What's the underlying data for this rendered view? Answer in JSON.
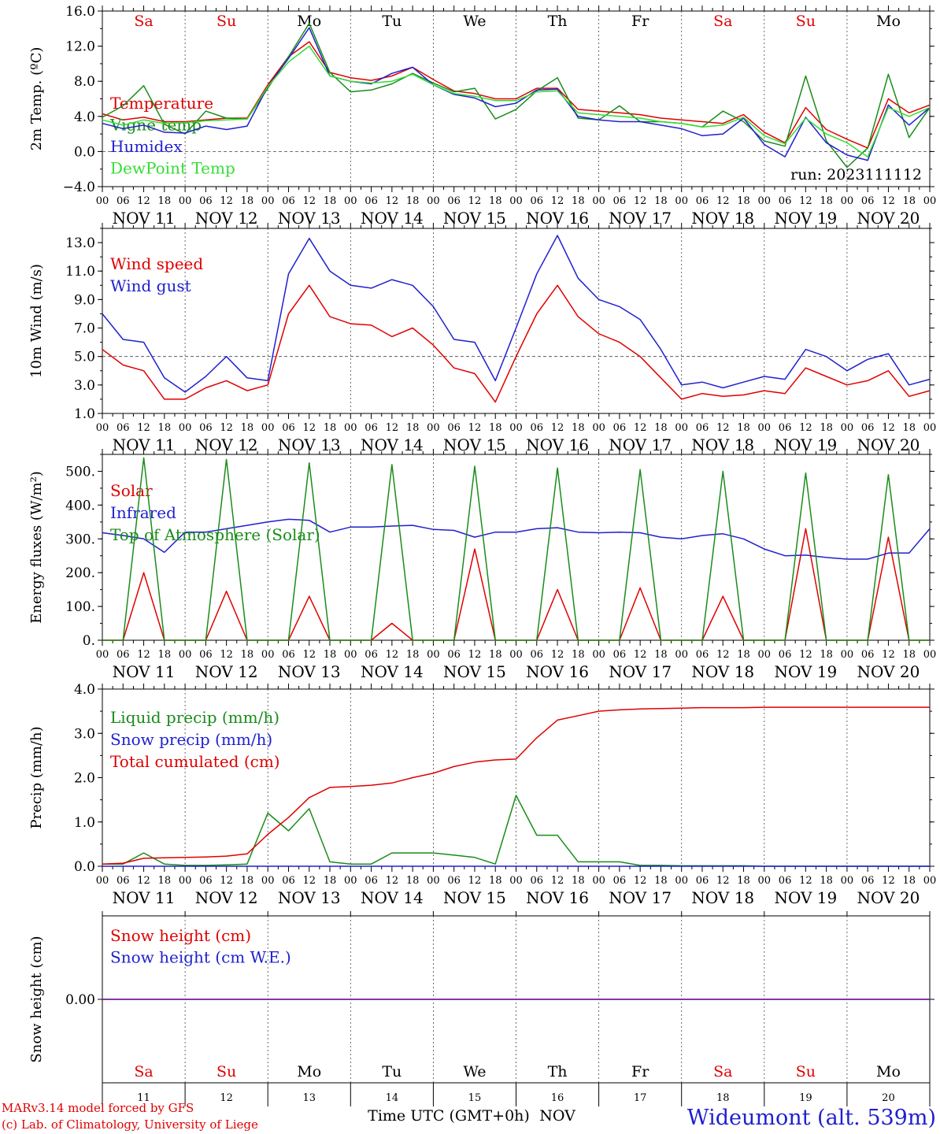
{
  "days": [
    "NOV 11",
    "NOV 12",
    "NOV 13",
    "NOV 14",
    "NOV 15",
    "NOV 16",
    "NOV 17",
    "NOV 18",
    "NOV 19",
    "NOV 20"
  ],
  "weekdays": [
    "Sa",
    "Su",
    "Mo",
    "Tu",
    "We",
    "Th",
    "Fr",
    "Sa",
    "Su",
    "Mo"
  ],
  "weekday_colors": [
    "#e00000",
    "#e00000",
    "#000000",
    "#000000",
    "#000000",
    "#000000",
    "#000000",
    "#e00000",
    "#e00000",
    "#000000"
  ],
  "bottom_day_numbers": [
    "11",
    "12",
    "13",
    "14",
    "15",
    "16",
    "17",
    "18",
    "19",
    "20"
  ],
  "hour_ticks": [
    "00",
    "06",
    "12",
    "18"
  ],
  "run_label": "run: 2023111112",
  "footer": {
    "credit_line1": "MARv3.14 model forced by GFS",
    "credit_line2": "(c) Lab. of Climatology, University of Liege",
    "axis_title": "Time UTC (GMT+0h)",
    "month": "NOV",
    "station": "Wideumont (alt. 539m)"
  },
  "chart_data": [
    {
      "type": "line",
      "ylabel": "2m Temp. (ºC)",
      "ylim": [
        -4,
        16
      ],
      "yticks": [
        "16.0",
        "12.0",
        "8.0",
        "4.0",
        "0.0",
        "−4.0"
      ],
      "ytick_values": [
        16,
        12,
        8,
        4,
        0,
        -4
      ],
      "ref_line": 0,
      "x": [
        0,
        6,
        12,
        18,
        24,
        30,
        36,
        42,
        48,
        54,
        60,
        66,
        72,
        78,
        84,
        90,
        96,
        102,
        108,
        114,
        120,
        126,
        132,
        138,
        144,
        150,
        156,
        162,
        168,
        174,
        180,
        186,
        192,
        198,
        204,
        210,
        216,
        222,
        228,
        234,
        240
      ],
      "series": [
        {
          "name": "Temperature",
          "color": "#e00000",
          "values": [
            4.3,
            3.6,
            3.9,
            3.4,
            3.4,
            3.6,
            3.8,
            3.8,
            7.6,
            10.8,
            12.5,
            9.0,
            8.4,
            8.1,
            8.6,
            9.6,
            8.2,
            6.9,
            6.6,
            6.0,
            6.0,
            7.2,
            7.2,
            4.8,
            4.6,
            4.4,
            4.2,
            3.8,
            3.6,
            3.4,
            3.2,
            4.2,
            2.2,
            1.0,
            5.0,
            2.5,
            1.4,
            0.4,
            6.0,
            4.4,
            5.3
          ]
        },
        {
          "name": "Vigne temp",
          "color": "#1a8c1a",
          "values": [
            3.9,
            5.2,
            7.5,
            3.1,
            2.0,
            4.6,
            3.8,
            3.7,
            7.2,
            10.8,
            14.6,
            9.0,
            6.8,
            7.0,
            7.7,
            8.9,
            7.8,
            6.8,
            7.2,
            3.7,
            4.8,
            6.9,
            8.4,
            3.8,
            3.6,
            5.2,
            3.4,
            3.4,
            3.2,
            2.8,
            4.6,
            3.4,
            1.2,
            0.6,
            8.6,
            1.2,
            -1.8,
            0.4,
            8.8,
            1.6,
            5.0
          ]
        },
        {
          "name": "Humidex",
          "color": "#2020d0",
          "values": [
            3.2,
            2.6,
            3.0,
            2.2,
            2.1,
            2.9,
            2.5,
            2.9,
            7.4,
            10.6,
            14.1,
            8.6,
            8.0,
            7.7,
            8.9,
            9.6,
            7.6,
            6.5,
            6.1,
            5.1,
            5.5,
            7.0,
            7.1,
            4.0,
            3.6,
            3.4,
            3.4,
            3.0,
            2.6,
            1.8,
            2.0,
            3.8,
            0.8,
            -0.6,
            3.9,
            1.0,
            -0.4,
            -1.0,
            5.3,
            3.0,
            5.0
          ]
        },
        {
          "name": "DewPoint Temp",
          "color": "#33dd33",
          "values": [
            3.6,
            3.0,
            3.6,
            3.2,
            3.3,
            3.5,
            3.6,
            3.7,
            7.4,
            10.2,
            12.0,
            8.6,
            8.0,
            7.8,
            8.0,
            8.8,
            7.6,
            6.6,
            6.3,
            5.8,
            5.8,
            6.8,
            6.9,
            4.4,
            4.2,
            4.0,
            3.8,
            3.4,
            3.2,
            2.8,
            3.0,
            3.9,
            1.8,
            0.9,
            3.8,
            2.0,
            1.0,
            -0.6,
            5.0,
            4.0,
            5.0
          ]
        }
      ]
    },
    {
      "type": "line",
      "ylabel": "10m Wind (m/s)",
      "ylim": [
        1,
        14
      ],
      "yticks": [
        "13.0",
        "11.0",
        "9.0",
        "7.0",
        "5.0",
        "3.0",
        "1.0"
      ],
      "ytick_values": [
        13,
        11,
        9,
        7,
        5,
        3,
        1
      ],
      "ref_line": 5,
      "x": [
        0,
        6,
        12,
        18,
        24,
        30,
        36,
        42,
        48,
        54,
        60,
        66,
        72,
        78,
        84,
        90,
        96,
        102,
        108,
        114,
        120,
        126,
        132,
        138,
        144,
        150,
        156,
        162,
        168,
        174,
        180,
        186,
        192,
        198,
        204,
        210,
        216,
        222,
        228,
        234,
        240
      ],
      "series": [
        {
          "name": "Wind speed",
          "color": "#e00000",
          "values": [
            5.5,
            4.4,
            4.0,
            2.0,
            2.0,
            2.8,
            3.3,
            2.6,
            3.0,
            8.0,
            10.0,
            7.8,
            7.3,
            7.2,
            6.4,
            7.0,
            5.8,
            4.2,
            3.8,
            1.8,
            5.0,
            8.0,
            10.0,
            7.8,
            6.6,
            6.0,
            5.0,
            3.5,
            2.0,
            2.4,
            2.2,
            2.3,
            2.6,
            2.4,
            4.2,
            3.6,
            3.0,
            3.3,
            4.0,
            2.2,
            2.6
          ]
        },
        {
          "name": "Wind gust",
          "color": "#2020d0",
          "values": [
            8.0,
            6.2,
            6.0,
            3.5,
            2.5,
            3.6,
            5.0,
            3.5,
            3.3,
            10.8,
            13.3,
            11.0,
            10.0,
            9.8,
            10.4,
            10.0,
            8.5,
            6.2,
            6.0,
            3.3,
            7.0,
            10.8,
            13.5,
            10.5,
            9.0,
            8.5,
            7.6,
            5.5,
            3.0,
            3.2,
            2.8,
            3.2,
            3.6,
            3.4,
            5.5,
            5.0,
            4.0,
            4.8,
            5.2,
            3.0,
            3.4
          ]
        }
      ]
    },
    {
      "type": "line",
      "ylabel": "Energy fluxes (W/m²)",
      "ylim": [
        0,
        550
      ],
      "yticks": [
        "500.",
        "400.",
        "300.",
        "200.",
        "100.",
        "0."
      ],
      "ytick_values": [
        500,
        400,
        300,
        200,
        100,
        0
      ],
      "x": [
        0,
        6,
        12,
        18,
        24,
        30,
        36,
        42,
        48,
        54,
        60,
        66,
        72,
        78,
        84,
        90,
        96,
        102,
        108,
        114,
        120,
        126,
        132,
        138,
        144,
        150,
        156,
        162,
        168,
        174,
        180,
        186,
        192,
        198,
        204,
        210,
        216,
        222,
        228,
        234,
        240
      ],
      "series": [
        {
          "name": "Solar",
          "color": "#e00000",
          "values": [
            0,
            0,
            200,
            0,
            0,
            0,
            145,
            0,
            0,
            0,
            130,
            0,
            0,
            0,
            50,
            0,
            0,
            0,
            270,
            0,
            0,
            0,
            150,
            0,
            0,
            0,
            155,
            0,
            0,
            0,
            130,
            0,
            0,
            0,
            330,
            0,
            0,
            0,
            305,
            0,
            0
          ]
        },
        {
          "name": "Infrared",
          "color": "#2020d0",
          "values": [
            318,
            310,
            300,
            260,
            320,
            320,
            330,
            340,
            350,
            358,
            355,
            320,
            335,
            335,
            338,
            340,
            328,
            325,
            305,
            320,
            320,
            330,
            333,
            320,
            318,
            320,
            318,
            305,
            300,
            310,
            315,
            300,
            270,
            250,
            252,
            245,
            240,
            240,
            258,
            258,
            330
          ]
        },
        {
          "name": "Top of Atmosphere (Solar)",
          "color": "#1a8c1a",
          "values": [
            0,
            0,
            540,
            0,
            0,
            0,
            535,
            0,
            0,
            0,
            525,
            0,
            0,
            0,
            520,
            0,
            0,
            0,
            515,
            0,
            0,
            0,
            510,
            0,
            0,
            0,
            505,
            0,
            0,
            0,
            500,
            0,
            0,
            0,
            495,
            0,
            0,
            0,
            490,
            0,
            0
          ]
        }
      ]
    },
    {
      "type": "line",
      "ylabel": "Precip (mm/h)",
      "ylim": [
        0,
        4
      ],
      "yticks": [
        "4.0",
        "3.0",
        "2.0",
        "1.0",
        "0.0"
      ],
      "ytick_values": [
        4,
        3,
        2,
        1,
        0
      ],
      "x": [
        0,
        6,
        12,
        18,
        24,
        30,
        36,
        42,
        48,
        54,
        60,
        66,
        72,
        78,
        84,
        90,
        96,
        102,
        108,
        114,
        120,
        126,
        132,
        138,
        144,
        150,
        156,
        162,
        168,
        174,
        180,
        186,
        192,
        198,
        204,
        210,
        216,
        222,
        228,
        234,
        240
      ],
      "series": [
        {
          "name": "Liquid precip (mm/h)",
          "color": "#1a8c1a",
          "values": [
            0.05,
            0.05,
            0.3,
            0.05,
            0.02,
            0.02,
            0.03,
            0.05,
            1.2,
            0.8,
            1.3,
            0.1,
            0.05,
            0.05,
            0.3,
            0.3,
            0.3,
            0.25,
            0.2,
            0.05,
            1.6,
            0.7,
            0.7,
            0.1,
            0.1,
            0.1,
            0.02,
            0.02,
            0.01,
            0.01,
            0.01,
            0.01,
            0.0,
            0.0,
            0.0,
            0.0,
            0.0,
            0.0,
            0.0,
            0.0,
            0.0
          ]
        },
        {
          "name": "Snow precip (mm/h)",
          "color": "#2020d0",
          "values": [
            0,
            0,
            0,
            0,
            0,
            0,
            0,
            0,
            0,
            0,
            0,
            0,
            0,
            0,
            0,
            0,
            0,
            0,
            0,
            0,
            0,
            0,
            0,
            0,
            0,
            0,
            0,
            0,
            0,
            0,
            0,
            0,
            0,
            0,
            0,
            0,
            0,
            0,
            0,
            0,
            0
          ]
        },
        {
          "name": "Total cumulated (cm)",
          "color": "#e00000",
          "values": [
            0.05,
            0.07,
            0.18,
            0.19,
            0.2,
            0.21,
            0.23,
            0.28,
            0.72,
            1.1,
            1.55,
            1.78,
            1.8,
            1.83,
            1.88,
            2.0,
            2.1,
            2.25,
            2.35,
            2.4,
            2.42,
            2.9,
            3.3,
            3.4,
            3.5,
            3.53,
            3.55,
            3.56,
            3.57,
            3.58,
            3.58,
            3.58,
            3.59,
            3.59,
            3.59,
            3.59,
            3.59,
            3.59,
            3.59,
            3.59,
            3.59
          ]
        }
      ]
    },
    {
      "type": "line",
      "ylabel": "Snow height (cm)",
      "ylim": [
        -1,
        1
      ],
      "yticks": [
        "0.00"
      ],
      "ytick_values": [
        0
      ],
      "x": [
        0,
        240
      ],
      "series": [
        {
          "name": "Snow height (cm)",
          "color": "#e00000",
          "values": [
            0,
            0
          ]
        },
        {
          "name": "Snow height (cm W.E.)",
          "color": "#2020d0",
          "values": [
            0,
            0
          ]
        }
      ]
    }
  ]
}
